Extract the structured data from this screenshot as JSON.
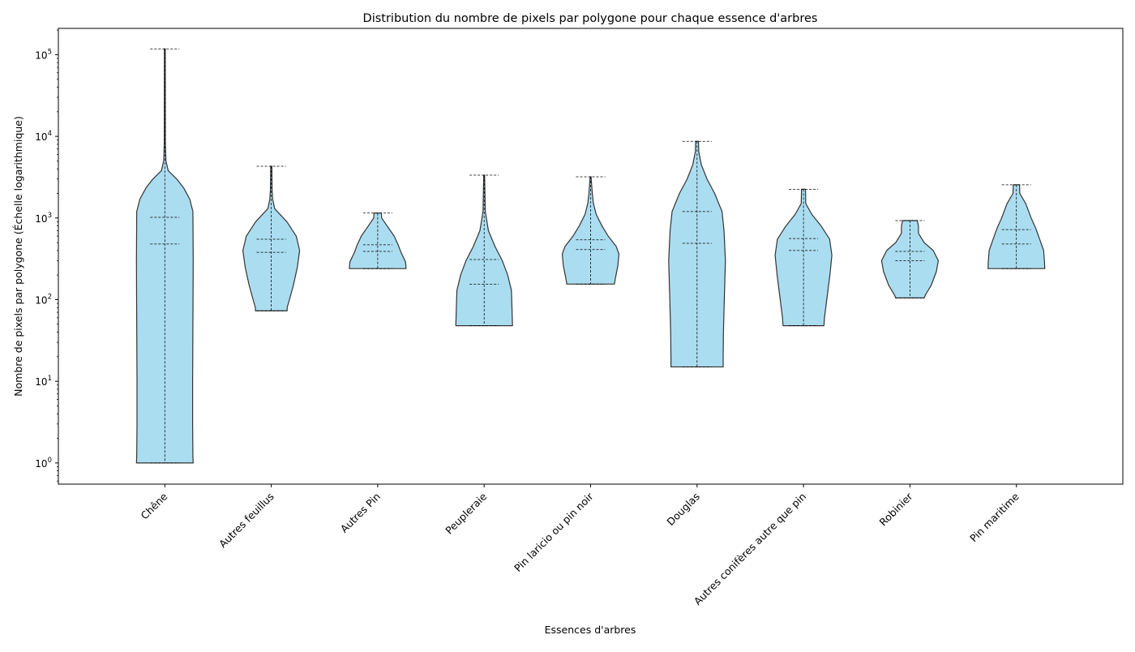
{
  "chart_data": {
    "type": "violin",
    "title": "Distribution du nombre de pixels par polygone pour chaque essence d'arbres",
    "xlabel": "Essences d'arbres",
    "ylabel": "Nombre de pixels par polygone (Échelle logarithmique)",
    "yscale": "log",
    "ylim": [
      0.55,
      210000
    ],
    "yticks": [
      {
        "value": 1,
        "label": "10^0",
        "base": "10",
        "exp": "0"
      },
      {
        "value": 10,
        "label": "10^1",
        "base": "10",
        "exp": "1"
      },
      {
        "value": 100,
        "label": "10^2",
        "base": "10",
        "exp": "2"
      },
      {
        "value": 1000,
        "label": "10^3",
        "base": "10",
        "exp": "3"
      },
      {
        "value": 10000,
        "label": "10^4",
        "base": "10",
        "exp": "4"
      },
      {
        "value": 100000,
        "label": "10^5",
        "base": "10",
        "exp": "5"
      }
    ],
    "grid": false,
    "legend": "none",
    "colors": {
      "fill": "#87CEEB",
      "edge": "#333333",
      "lines": "#000000"
    },
    "categories": [
      "Chêne",
      "Autres feuillus",
      "Autres Pin",
      "Peupleraie",
      "Pin laricio ou pin noir",
      "Douglas",
      "Autres conifères autre que pin",
      "Robinier",
      "Pin maritime"
    ],
    "violins": [
      {
        "category": "Chêne",
        "min": 1,
        "max": 118000,
        "quartiles": [
          480,
          1020
        ],
        "profile": [
          [
            1,
            1.0
          ],
          [
            1.2,
            0.99
          ],
          [
            3,
            0.98
          ],
          [
            10,
            0.98
          ],
          [
            50,
            0.99
          ],
          [
            300,
            1.0
          ],
          [
            1200,
            0.99
          ],
          [
            1700,
            0.88
          ],
          [
            2350,
            0.66
          ],
          [
            3000,
            0.42
          ],
          [
            3800,
            0.12
          ],
          [
            5000,
            0.04
          ],
          [
            8000,
            0.02
          ],
          [
            118000,
            0.015
          ]
        ]
      },
      {
        "category": "Autres feuillus",
        "min": 73,
        "max": 4300,
        "quartiles": [
          380,
          550
        ],
        "profile": [
          [
            73,
            0.56
          ],
          [
            80,
            0.56
          ],
          [
            100,
            0.64
          ],
          [
            150,
            0.78
          ],
          [
            250,
            0.92
          ],
          [
            400,
            1.0
          ],
          [
            600,
            0.88
          ],
          [
            900,
            0.55
          ],
          [
            1300,
            0.12
          ],
          [
            1700,
            0.05
          ],
          [
            2200,
            0.03
          ],
          [
            4300,
            0.02
          ]
        ]
      },
      {
        "category": "Autres Pin",
        "min": 240,
        "max": 1150,
        "quartiles": [
          390,
          470
        ],
        "profile": [
          [
            240,
            1.0
          ],
          [
            290,
            0.98
          ],
          [
            380,
            0.82
          ],
          [
            470,
            0.72
          ],
          [
            600,
            0.58
          ],
          [
            800,
            0.33
          ],
          [
            1000,
            0.14
          ],
          [
            1150,
            0.13
          ]
        ]
      },
      {
        "category": "Peupleraie",
        "min": 48,
        "max": 3350,
        "quartiles": [
          155,
          310
        ],
        "profile": [
          [
            48,
            1.0
          ],
          [
            60,
            0.99
          ],
          [
            80,
            0.98
          ],
          [
            130,
            0.96
          ],
          [
            200,
            0.83
          ],
          [
            300,
            0.64
          ],
          [
            450,
            0.38
          ],
          [
            700,
            0.15
          ],
          [
            1200,
            0.04
          ],
          [
            3350,
            0.015
          ]
        ]
      },
      {
        "category": "Pin laricio ou pin noir",
        "min": 155,
        "max": 3200,
        "quartiles": [
          410,
          540
        ],
        "profile": [
          [
            155,
            0.84
          ],
          [
            180,
            0.87
          ],
          [
            260,
            0.96
          ],
          [
            360,
            1.0
          ],
          [
            450,
            0.9
          ],
          [
            600,
            0.62
          ],
          [
            800,
            0.4
          ],
          [
            1100,
            0.2
          ],
          [
            1500,
            0.1
          ],
          [
            2000,
            0.06
          ],
          [
            3200,
            0.015
          ]
        ]
      },
      {
        "category": "Douglas",
        "min": 15,
        "max": 8700,
        "quartiles": [
          490,
          1200
        ],
        "profile": [
          [
            15,
            0.92
          ],
          [
            20,
            0.92
          ],
          [
            40,
            0.93
          ],
          [
            100,
            0.96
          ],
          [
            300,
            1.0
          ],
          [
            700,
            0.95
          ],
          [
            1200,
            0.88
          ],
          [
            2000,
            0.62
          ],
          [
            3000,
            0.35
          ],
          [
            4500,
            0.15
          ],
          [
            6500,
            0.06
          ],
          [
            8700,
            0.05
          ]
        ]
      },
      {
        "category": "Autres conifères autre que pin",
        "min": 48,
        "max": 2250,
        "quartiles": [
          400,
          560
        ],
        "profile": [
          [
            48,
            0.72
          ],
          [
            60,
            0.74
          ],
          [
            100,
            0.82
          ],
          [
            200,
            0.93
          ],
          [
            350,
            1.0
          ],
          [
            550,
            0.92
          ],
          [
            800,
            0.62
          ],
          [
            1100,
            0.3
          ],
          [
            1500,
            0.08
          ],
          [
            2250,
            0.07
          ]
        ]
      },
      {
        "category": "Robinier",
        "min": 105,
        "max": 930,
        "quartiles": [
          300,
          390
        ],
        "profile": [
          [
            105,
            0.5
          ],
          [
            115,
            0.55
          ],
          [
            150,
            0.75
          ],
          [
            220,
            0.93
          ],
          [
            300,
            1.0
          ],
          [
            400,
            0.82
          ],
          [
            500,
            0.5
          ],
          [
            650,
            0.3
          ],
          [
            800,
            0.3
          ],
          [
            930,
            0.26
          ]
        ]
      },
      {
        "category": "Pin maritime",
        "min": 240,
        "max": 2550,
        "quartiles": [
          480,
          720
        ],
        "profile": [
          [
            240,
            1.0
          ],
          [
            290,
            0.99
          ],
          [
            400,
            0.96
          ],
          [
            550,
            0.82
          ],
          [
            750,
            0.68
          ],
          [
            1000,
            0.52
          ],
          [
            1500,
            0.33
          ],
          [
            2000,
            0.12
          ],
          [
            2550,
            0.11
          ]
        ]
      }
    ]
  }
}
